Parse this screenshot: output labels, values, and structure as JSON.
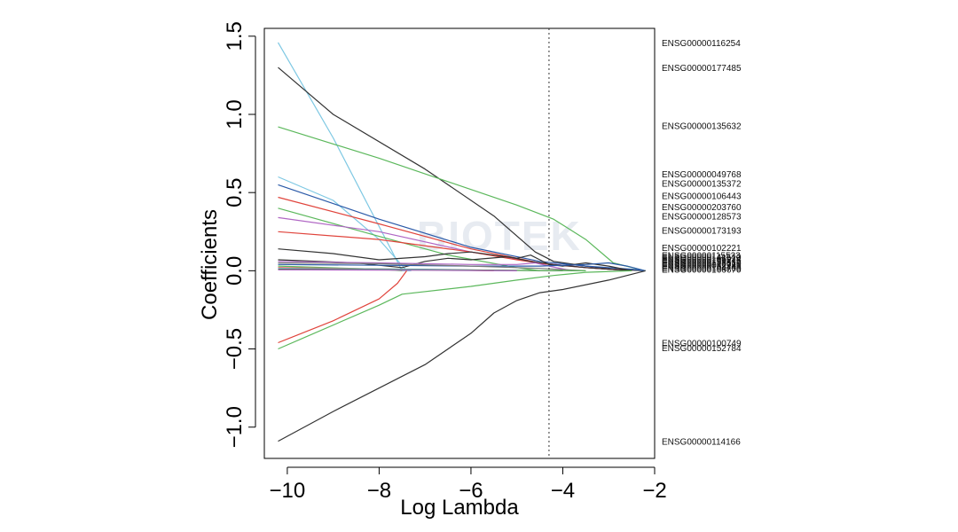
{
  "chart_data": {
    "type": "line",
    "title": "",
    "xlabel": "Log Lambda",
    "ylabel": "Coefficients",
    "xlim": [
      -10.5,
      -2
    ],
    "ylim": [
      -1.2,
      1.55
    ],
    "xticks": [
      -10,
      -8,
      -6,
      -4,
      -2
    ],
    "xtick_labels": [
      "−10",
      "−8",
      "−6",
      "−4",
      "−2"
    ],
    "yticks": [
      -1.0,
      -0.5,
      0.0,
      0.5,
      1.0,
      1.5
    ],
    "ytick_labels": [
      "−1.0",
      "−0.5",
      "0.0",
      "0.5",
      "1.0",
      "1.5"
    ],
    "vline_x": -4.3,
    "watermark": "BIOTEK",
    "series": [
      {
        "name": "ENSG00000116254",
        "label_y": 1.46,
        "color": "#7ec8e3",
        "x": [
          -10.2,
          -9.0,
          -7.5,
          -7.3
        ],
        "y": [
          1.46,
          0.85,
          0.0,
          0.0
        ]
      },
      {
        "name": "ENSG00000177485",
        "label_y": 1.3,
        "color": "#333333",
        "x": [
          -10.2,
          -9.0,
          -7.0,
          -5.5,
          -4.6,
          -4.2,
          -3.5,
          -2.9,
          -2.2
        ],
        "y": [
          1.3,
          1.0,
          0.65,
          0.35,
          0.12,
          0.06,
          0.03,
          0.01,
          0.0
        ]
      },
      {
        "name": "ENSG00000135632",
        "label_y": 0.93,
        "color": "#5cb85c",
        "x": [
          -10.2,
          -8.0,
          -6.0,
          -5.0,
          -4.2,
          -3.5,
          -2.9,
          -2.2
        ],
        "y": [
          0.92,
          0.72,
          0.52,
          0.42,
          0.33,
          0.2,
          0.05,
          0.0
        ]
      },
      {
        "name": "ENSG00000049768",
        "label_y": 0.62,
        "color": "#7ec8e3",
        "x": [
          -10.2,
          -9.0,
          -8.0,
          -7.4
        ],
        "y": [
          0.6,
          0.45,
          0.2,
          0.0
        ]
      },
      {
        "name": "ENSG00000135372",
        "label_y": 0.56,
        "color": "#2b5aa8",
        "x": [
          -10.2,
          -8.0,
          -6.0,
          -4.5,
          -3.5,
          -2.5,
          -2.2
        ],
        "y": [
          0.55,
          0.33,
          0.15,
          0.06,
          0.03,
          0.01,
          0.0
        ]
      },
      {
        "name": "ENSG00000106443",
        "label_y": 0.48,
        "color": "#e0443c",
        "x": [
          -10.2,
          -8.0,
          -6.0,
          -4.5,
          -3.5,
          -2.5
        ],
        "y": [
          0.47,
          0.3,
          0.14,
          0.05,
          0.02,
          0.0
        ]
      },
      {
        "name": "ENSG00000203760",
        "label_y": 0.41,
        "color": "#5cb85c",
        "x": [
          -10.2,
          -8.0,
          -6.5,
          -5.0,
          -4.5
        ],
        "y": [
          0.4,
          0.22,
          0.1,
          0.02,
          0.0
        ]
      },
      {
        "name": "ENSG00000128573",
        "label_y": 0.35,
        "color": "#b066c4",
        "x": [
          -10.2,
          -8.0,
          -6.0,
          -4.5,
          -3.5,
          -2.5
        ],
        "y": [
          0.34,
          0.25,
          0.12,
          0.05,
          0.02,
          0.0
        ]
      },
      {
        "name": "ENSG00000173193",
        "label_y": 0.26,
        "color": "#e0443c",
        "x": [
          -10.2,
          -8.0,
          -6.0,
          -5.0,
          -4.3,
          -3.5,
          -2.5
        ],
        "y": [
          0.25,
          0.2,
          0.12,
          0.07,
          0.04,
          0.02,
          0.0
        ]
      },
      {
        "name": "ENSG00000102221",
        "label_y": 0.15,
        "color": "#333333",
        "x": [
          -10.2,
          -9.0,
          -8.0,
          -7.0,
          -6.5,
          -6.0,
          -5.5,
          -5.0,
          -4.7,
          -4.5,
          -4.3,
          -4.0,
          -3.5,
          -3.0,
          -2.5
        ],
        "y": [
          0.14,
          0.11,
          0.07,
          0.09,
          0.11,
          0.12,
          0.1,
          0.08,
          0.1,
          0.07,
          0.04,
          0.03,
          0.05,
          0.03,
          0.0
        ]
      },
      {
        "name": "ENSG00000115523",
        "label_y": 0.1,
        "color": "#333333",
        "x": [
          -10.2,
          -8.5,
          -7.5,
          -7.0,
          -6.5,
          -6.0,
          -5.2,
          -4.7,
          -4.2,
          -3.5,
          -2.5
        ],
        "y": [
          0.07,
          0.05,
          0.02,
          0.06,
          0.08,
          0.07,
          0.09,
          0.06,
          0.04,
          0.02,
          0.0
        ]
      },
      {
        "name": "ENSG00000141510",
        "label_y": 0.09,
        "color": "#b066c4",
        "x": [
          -10.2,
          -8.0,
          -6.0,
          -5.0,
          -4.6,
          -4.3,
          -3.8
        ],
        "y": [
          0.06,
          0.05,
          0.04,
          0.04,
          0.05,
          0.03,
          0.0
        ]
      },
      {
        "name": "ENSG00000105974",
        "label_y": 0.08,
        "color": "#2b5aa8",
        "x": [
          -10.2,
          -8.0,
          -6.0,
          -4.5,
          -3.5,
          -3.0,
          -2.6,
          -2.2
        ],
        "y": [
          0.04,
          0.035,
          0.03,
          0.03,
          0.04,
          0.05,
          0.03,
          0.0
        ]
      },
      {
        "name": "ENSG00000169245",
        "label_y": 0.07,
        "color": "#7a7a7a",
        "x": [
          -10.2,
          -8.0,
          -6.0,
          -4.5,
          -3.5
        ],
        "y": [
          0.05,
          0.045,
          0.03,
          0.015,
          0.0
        ]
      },
      {
        "name": "ENSG00000158516",
        "label_y": 0.06,
        "color": "#5cb85c",
        "x": [
          -10.2,
          -8.0,
          -7.5
        ],
        "y": [
          0.03,
          0.01,
          0.0
        ]
      },
      {
        "name": "ENSG00000123610",
        "label_y": 0.05,
        "color": "#e0443c",
        "x": [
          -10.2,
          -7.5,
          -5.5
        ],
        "y": [
          0.02,
          0.01,
          0.0
        ]
      },
      {
        "name": "ENSG00000082781",
        "label_y": 0.04,
        "color": "#7ec8e3",
        "x": [
          -10.2,
          -7.0,
          -5.0
        ],
        "y": [
          0.015,
          0.01,
          0.0
        ]
      },
      {
        "name": "ENSG00000138449",
        "label_y": 0.03,
        "color": "#333333",
        "x": [
          -10.2,
          -6.0,
          -4.0
        ],
        "y": [
          0.01,
          0.005,
          0.0
        ]
      },
      {
        "name": "ENSG00000104760",
        "label_y": 0.02,
        "color": "#5cb85c",
        "x": [
          -10.2,
          -6.0,
          -3.5
        ],
        "y": [
          0.008,
          0.004,
          0.0
        ]
      },
      {
        "name": "ENSG00000166670",
        "label_y": 0.01,
        "color": "#b066c4",
        "x": [
          -10.2,
          -7.0,
          -5.0
        ],
        "y": [
          0.006,
          0.003,
          0.0
        ]
      },
      {
        "name": "ENSG00000100749",
        "label_y": -0.46,
        "color": "#e0443c",
        "x": [
          -10.2,
          -9.0,
          -8.0,
          -7.6,
          -7.4
        ],
        "y": [
          -0.46,
          -0.32,
          -0.18,
          -0.08,
          0.0
        ]
      },
      {
        "name": "ENSG00000152784",
        "label_y": -0.49,
        "color": "#5cb85c",
        "x": [
          -10.2,
          -8.0,
          -7.5,
          -6.0,
          -5.0,
          -4.2,
          -3.5,
          -2.5
        ],
        "y": [
          -0.5,
          -0.22,
          -0.15,
          -0.1,
          -0.06,
          -0.03,
          -0.01,
          0.0
        ]
      },
      {
        "name": "ENSG00000114166",
        "label_y": -1.09,
        "color": "#333333",
        "x": [
          -10.2,
          -9.0,
          -7.0,
          -6.0,
          -5.5,
          -5.0,
          -4.5,
          -4.0,
          -3.0,
          -2.2
        ],
        "y": [
          -1.09,
          -0.9,
          -0.6,
          -0.4,
          -0.27,
          -0.19,
          -0.14,
          -0.12,
          -0.06,
          0.0
        ]
      }
    ]
  }
}
